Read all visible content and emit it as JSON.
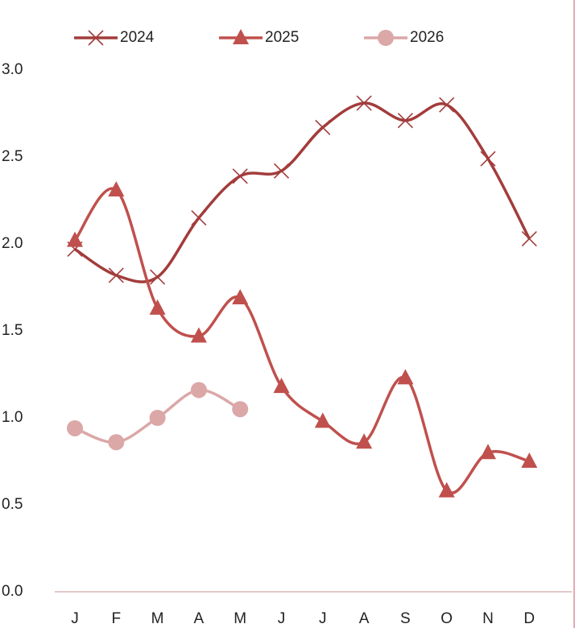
{
  "chart_data": {
    "type": "line",
    "categories": [
      "J",
      "F",
      "M",
      "A",
      "M",
      "J",
      "J",
      "A",
      "S",
      "O",
      "N",
      "D"
    ],
    "series": [
      {
        "name": "2024",
        "color": "#a33c3c",
        "marker": "x",
        "values": [
          1.97,
          1.82,
          1.81,
          2.15,
          2.39,
          2.42,
          2.67,
          2.81,
          2.71,
          2.8,
          2.49,
          2.03
        ]
      },
      {
        "name": "2025",
        "color": "#c0504d",
        "marker": "triangle",
        "values": [
          2.02,
          2.31,
          1.63,
          1.47,
          1.69,
          1.18,
          0.98,
          0.86,
          1.23,
          0.58,
          0.8,
          0.75
        ]
      },
      {
        "name": "2026",
        "color": "#dba7a7",
        "marker": "circle",
        "values": [
          0.94,
          0.86,
          1.0,
          1.16,
          1.05,
          null,
          null,
          null,
          null,
          null,
          null,
          null
        ]
      }
    ],
    "ylim": [
      0,
      3
    ],
    "yticks": [
      {
        "value": 0,
        "label": "0.0"
      },
      {
        "value": 0.5,
        "label": "0.5"
      },
      {
        "value": 1,
        "label": "1.0"
      },
      {
        "value": 1.5,
        "label": "1.5"
      },
      {
        "value": 2,
        "label": "2.0"
      },
      {
        "value": 2.5,
        "label": "2.5"
      },
      {
        "value": 3,
        "label": "3.0"
      }
    ],
    "grid": false,
    "smooth": true,
    "legend": "top"
  }
}
